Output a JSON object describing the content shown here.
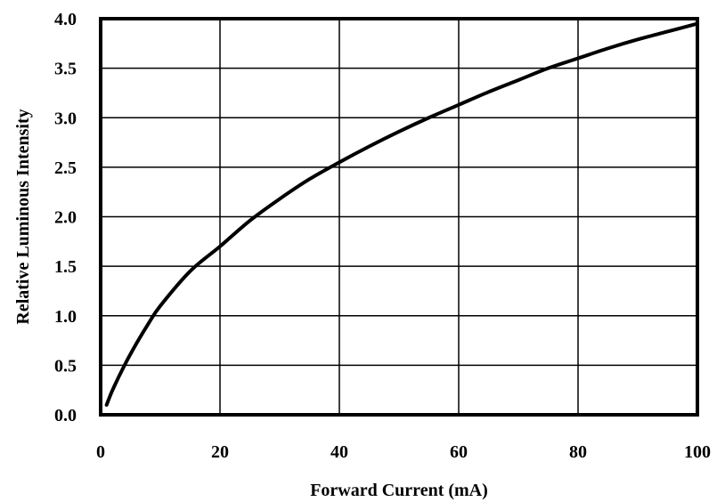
{
  "chart_data": {
    "type": "line",
    "title": "",
    "xlabel": "Forward Current (mA)",
    "ylabel": "Relative Luminous Intensity",
    "xlim": [
      0,
      100
    ],
    "ylim": [
      0,
      4.0
    ],
    "x_ticks": [
      0,
      20,
      40,
      60,
      80,
      100
    ],
    "x_tick_labels": [
      "0",
      "20",
      "40",
      "60",
      "80",
      "100"
    ],
    "y_ticks": [
      0,
      0.5,
      1.0,
      1.5,
      2.0,
      2.5,
      3.0,
      3.5,
      4.0
    ],
    "y_tick_labels": [
      "0.0",
      "0.5",
      "1.0",
      "1.5",
      "2.0",
      "2.5",
      "3.0",
      "3.5",
      "4.0"
    ],
    "grid": true,
    "legend": "none",
    "colors": {
      "line": "#000000",
      "grid": "#000000",
      "background": "#ffffff"
    },
    "series": [
      {
        "x": [
          1,
          2,
          4,
          6,
          8,
          10,
          15,
          20,
          25,
          30,
          35,
          40,
          45,
          50,
          55,
          60,
          65,
          70,
          75,
          80,
          85,
          90,
          95,
          100
        ],
        "y": [
          0.1,
          0.25,
          0.5,
          0.72,
          0.92,
          1.1,
          1.45,
          1.7,
          1.96,
          2.18,
          2.38,
          2.55,
          2.71,
          2.86,
          3.0,
          3.13,
          3.26,
          3.38,
          3.5,
          3.6,
          3.7,
          3.79,
          3.87,
          3.95
        ]
      }
    ]
  }
}
